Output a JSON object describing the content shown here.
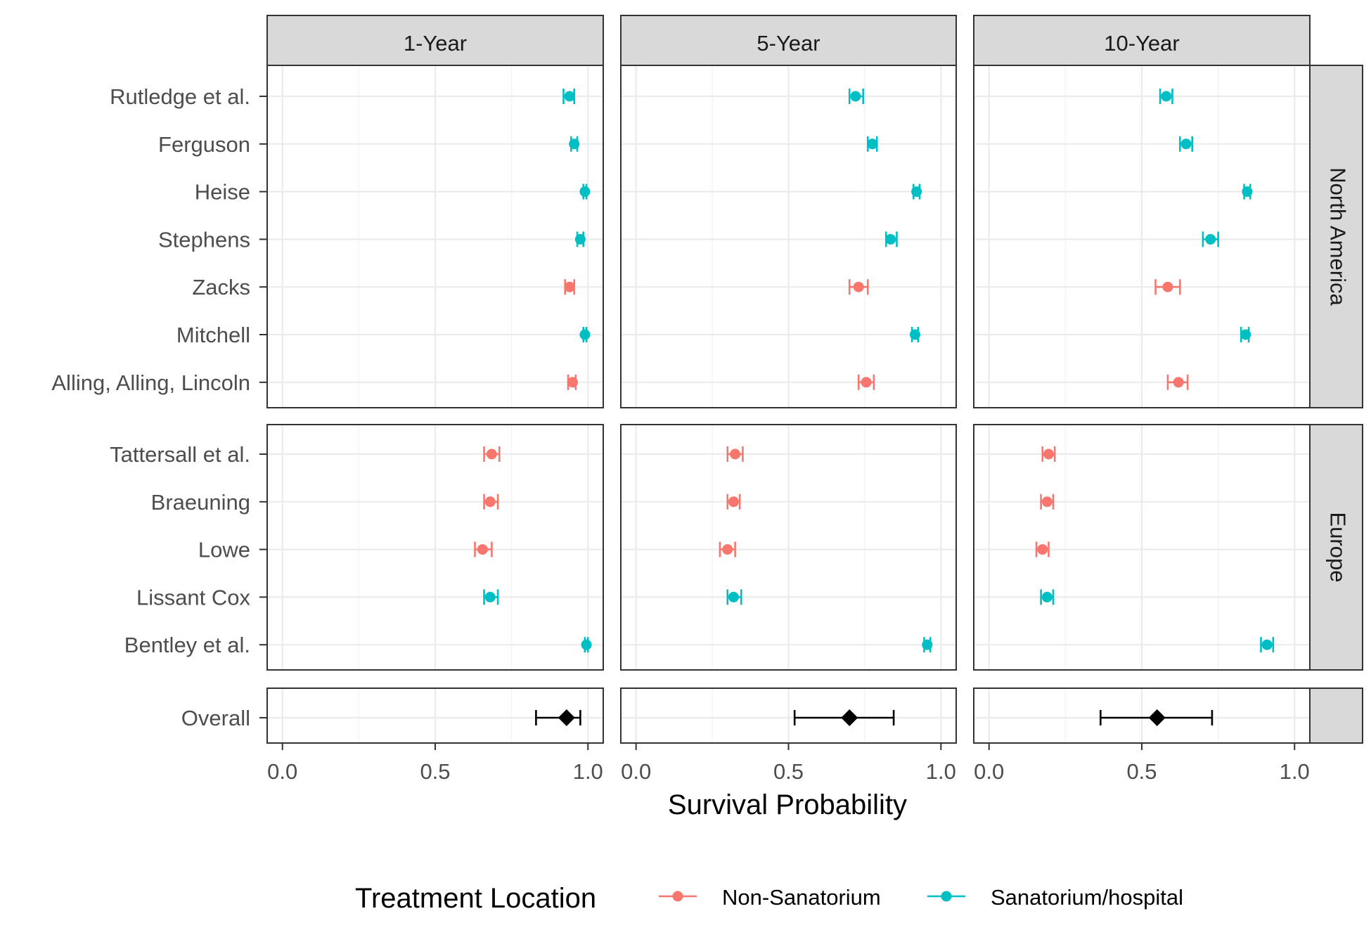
{
  "chart_data": {
    "type": "forest",
    "xlabel": "Survival Probability",
    "xlim": [
      -0.05,
      1.05
    ],
    "xticks": [
      0.0,
      0.5,
      1.0
    ],
    "xtick_labels": [
      "0.0",
      "0.5",
      "1.0"
    ],
    "grid": true,
    "columns": [
      "1-Year",
      "5-Year",
      "10-Year"
    ],
    "colors": {
      "Non-Sanatorium": "#F8766D",
      "Sanatorium/hospital": "#00BFC4",
      "Overall": "#000000"
    },
    "legend": {
      "title": "Treatment Location",
      "position": "bottom",
      "items": [
        {
          "label": "Non-Sanatorium",
          "key": "Non-Sanatorium"
        },
        {
          "label": "Sanatorium/hospital",
          "key": "Sanatorium/hospital"
        }
      ]
    },
    "panels": [
      {
        "strip": "North America",
        "studies": [
          {
            "name": "Rutledge et al.",
            "group": "Sanatorium/hospital",
            "est": [
              0.94,
              0.72,
              0.58
            ],
            "lo": [
              0.92,
              0.7,
              0.56
            ],
            "hi": [
              0.955,
              0.745,
              0.6
            ]
          },
          {
            "name": "Ferguson",
            "group": "Sanatorium/hospital",
            "est": [
              0.955,
              0.775,
              0.645
            ],
            "lo": [
              0.945,
              0.76,
              0.625
            ],
            "hi": [
              0.965,
              0.79,
              0.665
            ]
          },
          {
            "name": "Heise",
            "group": "Sanatorium/hospital",
            "est": [
              0.99,
              0.92,
              0.845
            ],
            "lo": [
              0.985,
              0.91,
              0.835
            ],
            "hi": [
              0.995,
              0.93,
              0.855
            ]
          },
          {
            "name": "Stephens",
            "group": "Sanatorium/hospital",
            "est": [
              0.975,
              0.835,
              0.725
            ],
            "lo": [
              0.965,
              0.82,
              0.7
            ],
            "hi": [
              0.985,
              0.855,
              0.75
            ]
          },
          {
            "name": "Zacks",
            "group": "Non-Sanatorium",
            "est": [
              0.94,
              0.73,
              0.585
            ],
            "lo": [
              0.925,
              0.7,
              0.545
            ],
            "hi": [
              0.955,
              0.76,
              0.625
            ]
          },
          {
            "name": "Mitchell",
            "group": "Sanatorium/hospital",
            "est": [
              0.99,
              0.915,
              0.84
            ],
            "lo": [
              0.985,
              0.905,
              0.825
            ],
            "hi": [
              0.995,
              0.925,
              0.85
            ]
          },
          {
            "name": "Alling, Alling, Lincoln",
            "group": "Non-Sanatorium",
            "est": [
              0.95,
              0.755,
              0.62
            ],
            "lo": [
              0.935,
              0.73,
              0.585
            ],
            "hi": [
              0.96,
              0.78,
              0.65
            ]
          }
        ]
      },
      {
        "strip": "Europe",
        "studies": [
          {
            "name": "Tattersall et al.",
            "group": "Non-Sanatorium",
            "est": [
              0.685,
              0.325,
              0.195
            ],
            "lo": [
              0.66,
              0.3,
              0.175
            ],
            "hi": [
              0.71,
              0.35,
              0.215
            ]
          },
          {
            "name": "Braeuning",
            "group": "Non-Sanatorium",
            "est": [
              0.68,
              0.32,
              0.19
            ],
            "lo": [
              0.66,
              0.3,
              0.17
            ],
            "hi": [
              0.705,
              0.34,
              0.21
            ]
          },
          {
            "name": "Lowe",
            "group": "Non-Sanatorium",
            "est": [
              0.655,
              0.3,
              0.175
            ],
            "lo": [
              0.63,
              0.275,
              0.155
            ],
            "hi": [
              0.685,
              0.325,
              0.195
            ]
          },
          {
            "name": "Lissant Cox",
            "group": "Sanatorium/hospital",
            "est": [
              0.68,
              0.32,
              0.19
            ],
            "lo": [
              0.66,
              0.3,
              0.17
            ],
            "hi": [
              0.705,
              0.345,
              0.21
            ]
          },
          {
            "name": "Bentley et al.",
            "group": "Sanatorium/hospital",
            "est": [
              0.995,
              0.955,
              0.91
            ],
            "lo": [
              0.99,
              0.945,
              0.89
            ],
            "hi": [
              1.0,
              0.965,
              0.93
            ]
          }
        ]
      },
      {
        "strip": "",
        "studies": [
          {
            "name": "Overall",
            "group": "Overall",
            "est": [
              0.93,
              0.7,
              0.55
            ],
            "lo": [
              0.83,
              0.52,
              0.365
            ],
            "hi": [
              0.975,
              0.845,
              0.73
            ]
          }
        ]
      }
    ]
  }
}
